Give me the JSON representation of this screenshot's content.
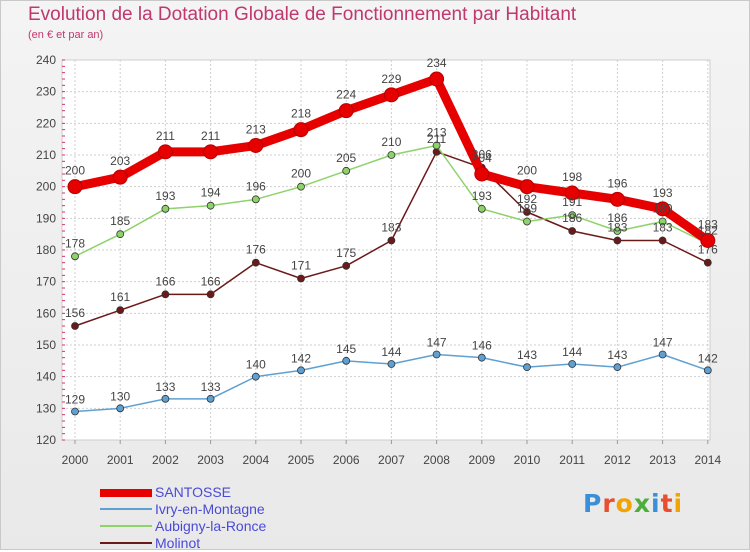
{
  "chart_data": {
    "type": "line",
    "title": "Evolution de la Dotation Globale de Fonctionnement par Habitant",
    "subtitle": "(en € et par an)",
    "xlabel": "",
    "ylabel": "",
    "categories": [
      "2000",
      "2001",
      "2002",
      "2003",
      "2004",
      "2005",
      "2006",
      "2007",
      "2008",
      "2009",
      "2010",
      "2011",
      "2012",
      "2013",
      "2014"
    ],
    "ylim": [
      120,
      240
    ],
    "yticks": [
      120,
      130,
      140,
      150,
      160,
      170,
      180,
      190,
      200,
      210,
      220,
      230,
      240
    ],
    "grid": true,
    "legend_position": "bottom-left",
    "series": [
      {
        "name": "SANTOSSE",
        "color": "#e60000",
        "values": [
          200,
          203,
          211,
          211,
          213,
          218,
          224,
          229,
          234,
          204,
          200,
          198,
          196,
          193,
          183
        ]
      },
      {
        "name": "Ivry-en-Montagne",
        "color": "#5fa0d2",
        "values": [
          129,
          130,
          133,
          133,
          140,
          142,
          145,
          144,
          147,
          146,
          143,
          144,
          143,
          147,
          142
        ]
      },
      {
        "name": "Aubigny-la-Ronce",
        "color": "#8ed26a",
        "values": [
          178,
          185,
          193,
          194,
          196,
          200,
          205,
          210,
          213,
          193,
          189,
          191,
          186,
          189,
          182
        ]
      },
      {
        "name": "Molinot",
        "color": "#6b1a1a",
        "values": [
          156,
          161,
          166,
          166,
          176,
          171,
          175,
          183,
          211,
          206,
          192,
          186,
          183,
          183,
          176
        ]
      }
    ]
  },
  "logo": [
    "P",
    "r",
    "o",
    "x",
    "i",
    "t",
    "i"
  ]
}
